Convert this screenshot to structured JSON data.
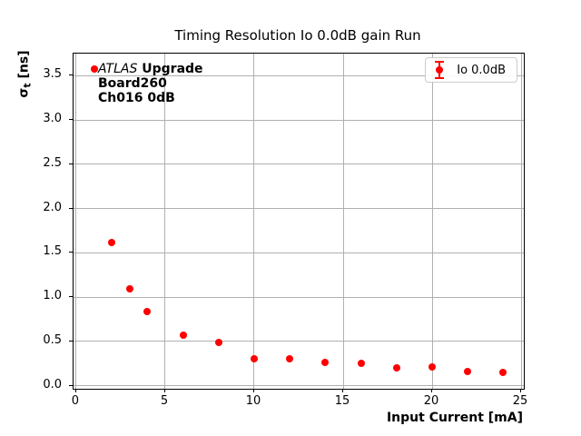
{
  "title": "Timing Resolution Io 0.0dB gain Run",
  "axes": {
    "x_label": "Input Current [mA]",
    "y_label": {
      "symbol": "σ",
      "subscript": "t",
      "units": " [ns]"
    }
  },
  "annotation": {
    "experiment": "ATLAS",
    "tag": "Upgrade",
    "board": "Board260",
    "channel": "Ch016 0dB"
  },
  "legend": {
    "label": "Io 0.0dB"
  },
  "colors": {
    "marker": "#ff0000",
    "grid": "#b0b0b0",
    "spine": "#000000",
    "legend_border": "#cccccc",
    "background": "#ffffff"
  },
  "chart_data": {
    "type": "scatter",
    "title": "Timing Resolution Io 0.0dB gain Run",
    "xlabel": "Input Current [mA]",
    "ylabel": "σ_t [ns]",
    "xlim": [
      -0.15,
      25.15
    ],
    "ylim": [
      -0.035,
      3.75
    ],
    "x_ticks": [
      0,
      5,
      10,
      15,
      20,
      25
    ],
    "y_ticks": [
      0.0,
      0.5,
      1.0,
      1.5,
      2.0,
      2.5,
      3.0,
      3.5
    ],
    "grid": true,
    "legend_position": "upper right",
    "series": [
      {
        "name": "Io 0.0dB",
        "color": "#ff0000",
        "marker": "circle",
        "error_bars": "present but smaller than markers",
        "x": [
          1,
          2,
          3,
          4,
          6,
          8,
          10,
          12,
          14,
          16,
          18,
          20,
          22,
          24
        ],
        "y": [
          3.58,
          1.62,
          1.09,
          0.84,
          0.57,
          0.49,
          0.3,
          0.3,
          0.26,
          0.25,
          0.2,
          0.21,
          0.16,
          0.15
        ]
      }
    ]
  }
}
